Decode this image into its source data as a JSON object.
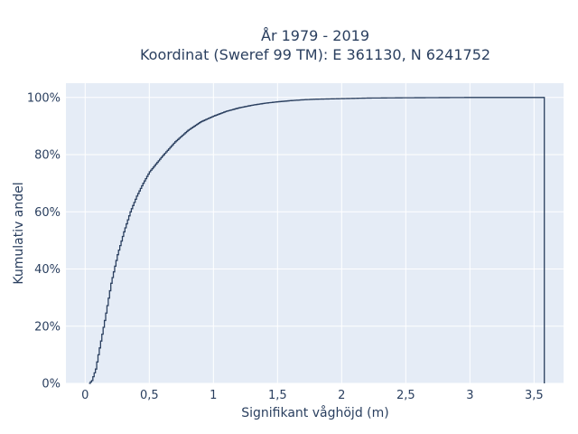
{
  "chart_data": {
    "type": "line",
    "step": true,
    "title_lines": [
      "År 1979 - 2019",
      "Koordinat (Sweref 99 TM): E 361130, N 6241752"
    ],
    "xlabel": "Signifikant våghöjd (m)",
    "ylabel": "Kumulativ andel",
    "xlim": [
      -0.15,
      3.73
    ],
    "ylim": [
      0,
      1.05
    ],
    "x_ticks": [
      0,
      0.5,
      1,
      1.5,
      2,
      2.5,
      3,
      3.5
    ],
    "x_tick_labels": [
      "0",
      "0,5",
      "1",
      "1,5",
      "2",
      "2,5",
      "3",
      "3,5"
    ],
    "y_ticks": [
      0,
      0.2,
      0.4,
      0.6,
      0.8,
      1.0
    ],
    "y_tick_labels": [
      "0%",
      "20%",
      "40%",
      "60%",
      "80%",
      "100%"
    ],
    "grid": true,
    "legend": false,
    "series": [
      {
        "x": [
          0.03,
          0.05,
          0.08,
          0.1,
          0.15,
          0.2,
          0.25,
          0.3,
          0.35,
          0.4,
          0.45,
          0.5,
          0.6,
          0.7,
          0.8,
          0.9,
          1.0,
          1.1,
          1.2,
          1.3,
          1.4,
          1.5,
          1.6,
          1.7,
          1.8,
          2.0,
          2.2,
          2.5,
          3.0,
          3.58,
          3.58
        ],
        "y": [
          0.0,
          0.01,
          0.05,
          0.1,
          0.22,
          0.35,
          0.45,
          0.53,
          0.6,
          0.655,
          0.7,
          0.74,
          0.795,
          0.845,
          0.885,
          0.915,
          0.935,
          0.952,
          0.964,
          0.973,
          0.98,
          0.985,
          0.989,
          0.992,
          0.994,
          0.996,
          0.998,
          0.999,
          1.0,
          1.0,
          0.0
        ]
      }
    ]
  },
  "colors": {
    "plot_bg": "#e5ecf6",
    "grid": "#ffffff",
    "line": "#2a3f5f",
    "text": "#2a3f5f"
  }
}
